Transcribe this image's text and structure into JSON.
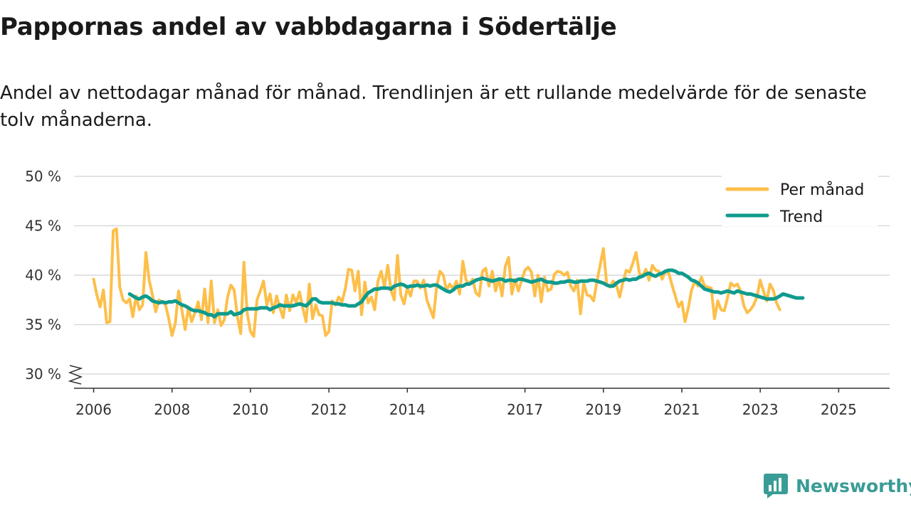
{
  "header": {
    "title": "Pappornas andel av vabbdagarna i Södertälje",
    "subtitle": "Andel av nettodagar månad för månad. Trendlinjen är ett rullande medelvärde för de senaste tolv månaderna."
  },
  "brand": {
    "name": "Newsworthy",
    "icon": "newsworthy-logo-icon",
    "color": "#3a9c96"
  },
  "colors": {
    "monthly": "#fdbf4a",
    "trend": "#0f9b8e",
    "grid": "#d9d9d9",
    "axis": "#333333"
  },
  "chart_data": {
    "type": "line",
    "title": "Pappornas andel av vabbdagarna i Södertälje",
    "xlabel": "",
    "ylabel": "",
    "ylim": [
      30,
      50
    ],
    "y_ticks": [
      30,
      35,
      40,
      45,
      50
    ],
    "y_tick_labels": [
      "30 %",
      "35 %",
      "40 %",
      "45 %",
      "50 %"
    ],
    "x_range": [
      2005.5,
      2026.3
    ],
    "x_ticks": [
      2006,
      2008,
      2010,
      2012,
      2014,
      2017,
      2019,
      2021,
      2023,
      2025
    ],
    "x_tick_labels": [
      "2006",
      "2008",
      "2010",
      "2012",
      "2014",
      "2017",
      "2019",
      "2021",
      "2023",
      "2025"
    ],
    "legend": {
      "position": "top-right",
      "entries": [
        "Per månad",
        "Trend"
      ]
    },
    "series": [
      {
        "name": "Per månad",
        "start": 2006.0,
        "step": 0.08333,
        "values": [
          39.6,
          38.0,
          36.8,
          38.5,
          35.2,
          35.3,
          44.5,
          44.7,
          38.8,
          37.5,
          37.2,
          37.6,
          35.8,
          37.9,
          36.5,
          37.0,
          42.3,
          39.5,
          38.0,
          36.3,
          37.5,
          37.3,
          37.0,
          35.6,
          33.9,
          35.1,
          38.4,
          36.5,
          34.5,
          36.7,
          35.3,
          36.2,
          37.3,
          35.5,
          38.6,
          35.2,
          39.4,
          35.2,
          36.5,
          34.9,
          35.5,
          37.8,
          39.0,
          38.5,
          35.8,
          34.1,
          41.3,
          36.2,
          34.3,
          33.8,
          37.5,
          38.4,
          39.4,
          37.0,
          38.1,
          36.2,
          37.9,
          36.7,
          35.7,
          38.0,
          36.4,
          38.0,
          37.2,
          38.3,
          36.7,
          35.3,
          39.1,
          35.6,
          37.0,
          36.0,
          35.9,
          33.9,
          34.3,
          37.4,
          37.0,
          37.8,
          37.3,
          38.6,
          40.6,
          40.5,
          38.4,
          40.4,
          36.0,
          39.3,
          37.2,
          37.8,
          36.5,
          39.4,
          40.4,
          38.8,
          41.0,
          38.5,
          37.5,
          42.0,
          38.0,
          37.1,
          38.7,
          37.9,
          39.4,
          39.4,
          38.7,
          39.5,
          37.5,
          36.6,
          35.7,
          38.9,
          40.4,
          40.0,
          38.5,
          39.1,
          38.6,
          39.4,
          38.1,
          41.4,
          39.5,
          39.1,
          39.6,
          38.2,
          37.9,
          40.4,
          40.7,
          38.9,
          40.4,
          38.4,
          39.7,
          37.9,
          40.9,
          41.8,
          38.1,
          39.6,
          38.4,
          39.5,
          40.5,
          40.8,
          40.3,
          37.9,
          40.0,
          37.3,
          39.8,
          38.4,
          38.6,
          40.1,
          40.4,
          40.3,
          40.0,
          40.3,
          38.9,
          38.4,
          39.5,
          36.1,
          39.2,
          38.0,
          37.9,
          37.4,
          39.3,
          41.0,
          42.7,
          39.1,
          38.8,
          39.4,
          39.0,
          37.8,
          39.3,
          40.5,
          40.3,
          41.2,
          42.3,
          40.2,
          39.9,
          40.6,
          39.5,
          41.0,
          40.5,
          40.4,
          39.6,
          40.4,
          40.2,
          39.0,
          37.9,
          36.8,
          37.3,
          35.3,
          36.7,
          38.5,
          39.4,
          38.9,
          39.8,
          38.9,
          38.8,
          38.7,
          35.6,
          37.4,
          36.5,
          36.4,
          37.7,
          39.2,
          38.9,
          39.1,
          38.4,
          36.9,
          36.2,
          36.5,
          37.0,
          37.8,
          39.5,
          38.4,
          37.4,
          39.1,
          38.5,
          37.2,
          36.5
        ]
      },
      {
        "name": "Trend",
        "start": 2006.917,
        "step": 0.08333,
        "values": [
          38.1,
          37.9,
          37.7,
          37.6,
          37.8,
          37.9,
          37.7,
          37.4,
          37.3,
          37.2,
          37.3,
          37.2,
          37.3,
          37.3,
          37.4,
          37.2,
          37.0,
          36.9,
          36.7,
          36.5,
          36.4,
          36.4,
          36.3,
          36.2,
          36.0,
          36.0,
          35.8,
          36.1,
          36.1,
          36.1,
          36.1,
          36.3,
          36.0,
          36.1,
          36.2,
          36.5,
          36.6,
          36.6,
          36.6,
          36.6,
          36.7,
          36.7,
          36.7,
          36.5,
          36.7,
          36.8,
          37.0,
          36.9,
          36.9,
          36.9,
          36.9,
          37.0,
          37.1,
          37.0,
          36.9,
          37.2,
          37.6,
          37.6,
          37.3,
          37.2,
          37.2,
          37.2,
          37.2,
          37.1,
          37.1,
          37.0,
          37.0,
          36.9,
          36.9,
          36.9,
          37.1,
          37.3,
          37.8,
          38.2,
          38.4,
          38.6,
          38.6,
          38.7,
          38.7,
          38.7,
          38.6,
          38.9,
          39.0,
          39.1,
          39.0,
          38.8,
          38.9,
          38.9,
          39.0,
          38.9,
          38.9,
          39.0,
          38.9,
          39.0,
          39.0,
          38.8,
          38.6,
          38.4,
          38.3,
          38.5,
          38.8,
          38.9,
          38.9,
          39.1,
          39.1,
          39.3,
          39.5,
          39.6,
          39.7,
          39.6,
          39.5,
          39.4,
          39.5,
          39.6,
          39.6,
          39.4,
          39.5,
          39.5,
          39.4,
          39.6,
          39.6,
          39.5,
          39.4,
          39.3,
          39.4,
          39.5,
          39.6,
          39.4,
          39.3,
          39.3,
          39.2,
          39.2,
          39.3,
          39.3,
          39.4,
          39.4,
          39.3,
          39.3,
          39.4,
          39.4,
          39.4,
          39.5,
          39.5,
          39.4,
          39.3,
          39.2,
          39.0,
          38.9,
          38.9,
          39.2,
          39.4,
          39.5,
          39.6,
          39.5,
          39.6,
          39.6,
          39.8,
          39.9,
          40.1,
          40.2,
          40.0,
          39.9,
          40.1,
          40.2,
          40.4,
          40.5,
          40.5,
          40.4,
          40.2,
          40.2,
          40.0,
          39.8,
          39.5,
          39.4,
          39.2,
          38.9,
          38.6,
          38.5,
          38.4,
          38.3,
          38.3,
          38.2,
          38.3,
          38.4,
          38.3,
          38.2,
          38.4,
          38.3,
          38.2,
          38.1,
          38.1,
          38.0,
          37.9,
          37.8,
          37.7,
          37.6,
          37.6,
          37.6,
          37.7,
          37.9,
          38.1,
          38.0,
          37.9,
          37.8,
          37.7,
          37.7,
          37.7
        ]
      }
    ]
  }
}
